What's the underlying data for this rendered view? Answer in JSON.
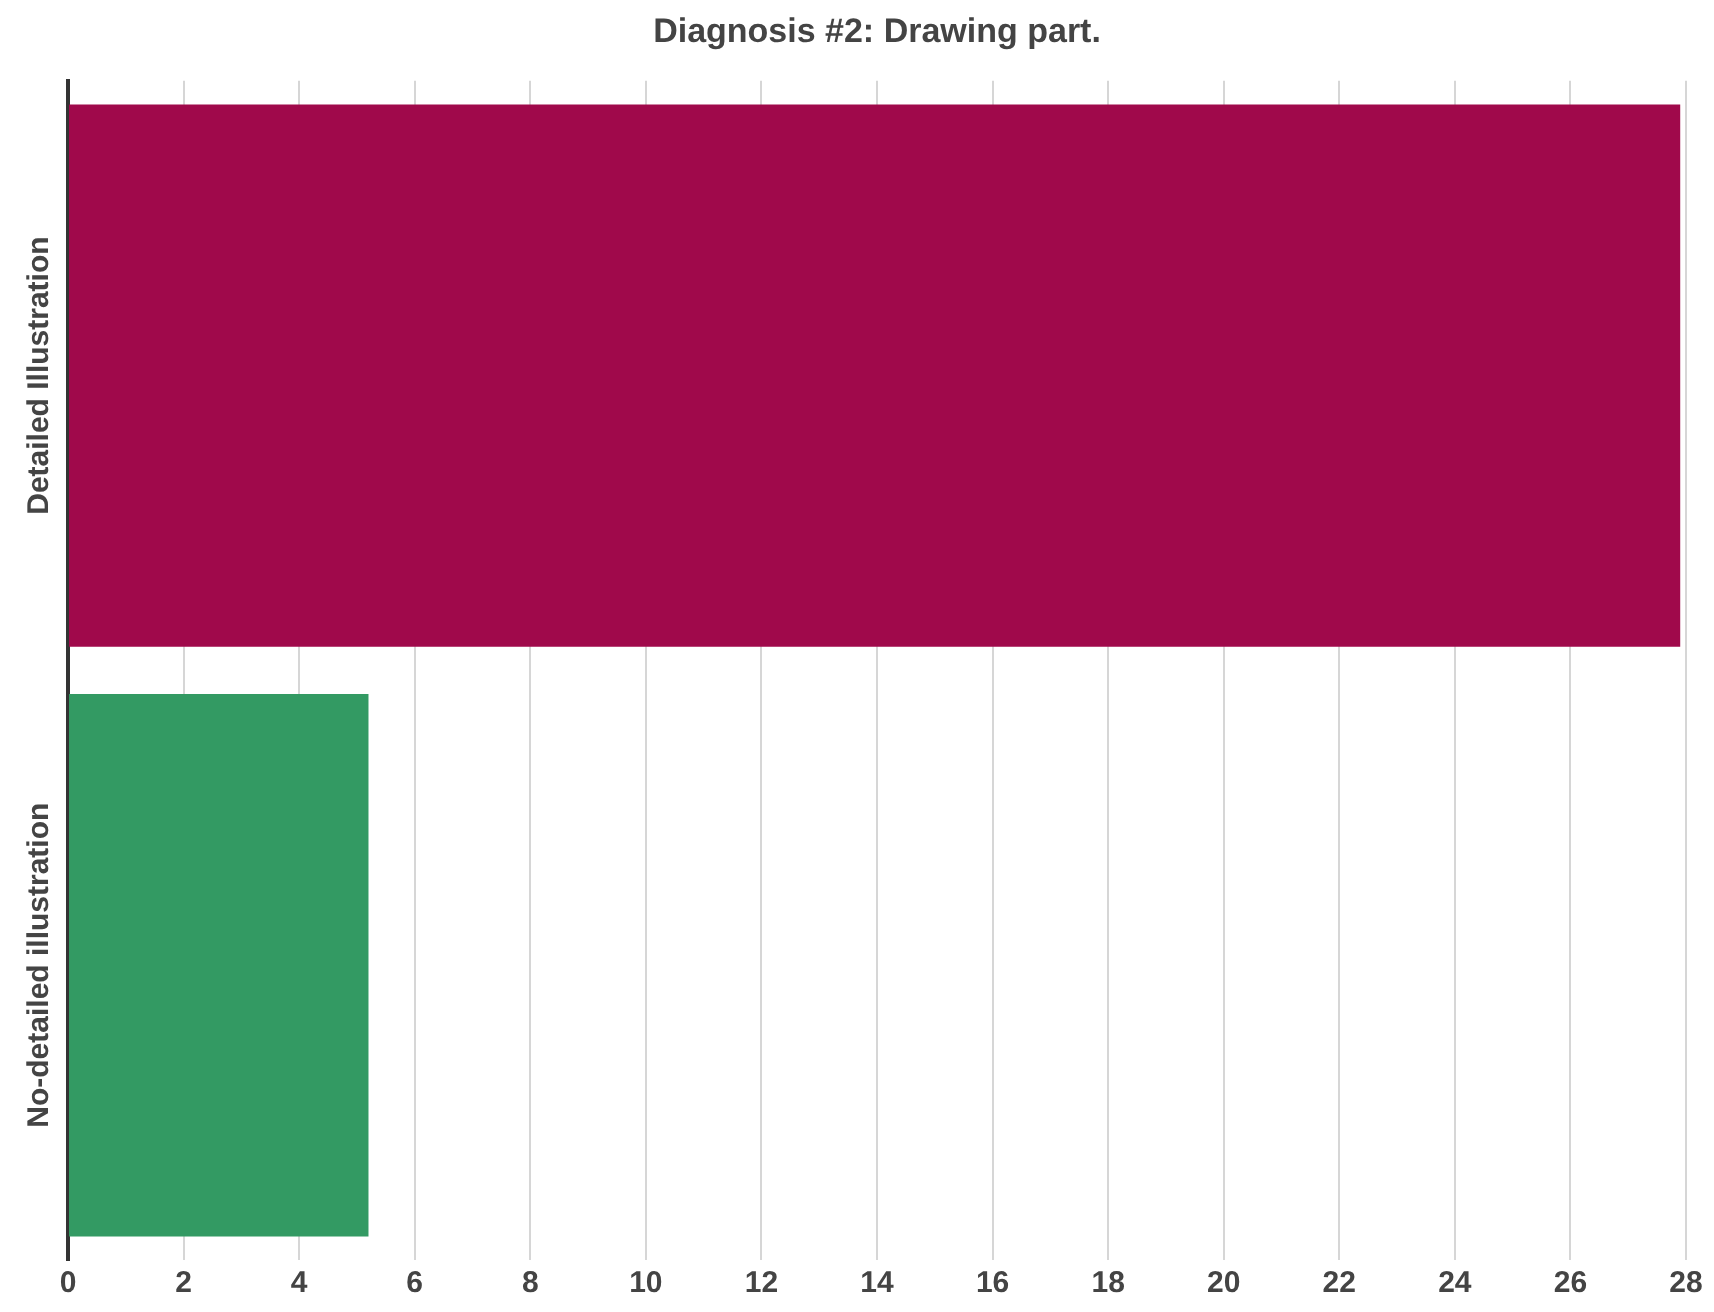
{
  "chart_data": {
    "type": "bar",
    "orientation": "horizontal",
    "title": "Diagnosis #2: Drawing part.",
    "categories": [
      "Detailed Illustration",
      "No-detailed illustration"
    ],
    "values": [
      27.9,
      5.2
    ],
    "colors": [
      "#a0094b",
      "#339a63"
    ],
    "xlim": [
      0,
      28
    ],
    "xticks": [
      0,
      2,
      4,
      6,
      8,
      10,
      12,
      14,
      16,
      18,
      20,
      22,
      24,
      26,
      28
    ],
    "grid": "x",
    "legend": false
  }
}
